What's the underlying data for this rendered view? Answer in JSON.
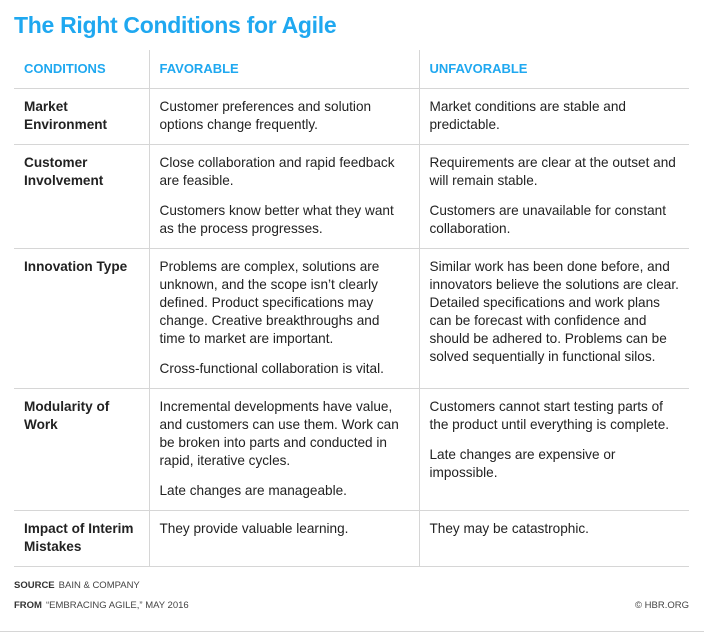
{
  "title": "The Right Conditions for Agile",
  "table": {
    "headers": [
      "CONDITIONS",
      "FAVORABLE",
      "UNFAVORABLE"
    ],
    "rows": [
      {
        "condition": "Market Environment",
        "favorable": [
          "Customer preferences and solution options change frequently."
        ],
        "unfavorable": [
          "Market conditions are stable and predictable."
        ]
      },
      {
        "condition": "Customer Involvement",
        "favorable": [
          "Close collaboration and rapid feedback are feasible.",
          "Customers know better what they want as the process progresses."
        ],
        "unfavorable": [
          "Requirements are clear at the outset and will remain stable.",
          "Customers are unavailable for constant collaboration."
        ]
      },
      {
        "condition": "Innovation Type",
        "favorable": [
          "Problems are complex, solutions are unknown, and the scope isn’t clearly defined. Product specifications may change. Creative breakthroughs and time to market are important.",
          "Cross-functional collaboration is vital."
        ],
        "unfavorable": [
          "Similar work has been done before, and innovators believe the solutions are clear. Detailed specifications and work plans can be forecast with confidence and should be adhered to. Problems can be solved sequentially in functional silos."
        ]
      },
      {
        "condition": "Modularity of Work",
        "favorable": [
          "Incremental developments have value, and customers can use them. Work can be broken into parts and conducted in rapid, iterative cycles.",
          "Late changes are manageable."
        ],
        "unfavorable": [
          "Customers cannot start testing parts of the product until everything is complete.",
          "Late changes are expensive or impossible."
        ]
      },
      {
        "condition": "Impact of Interim Mistakes",
        "favorable": [
          "They provide valuable learning."
        ],
        "unfavorable": [
          "They may be catastrophic."
        ]
      }
    ]
  },
  "footer": {
    "source_label": "SOURCE",
    "source": "BAIN & COMPANY",
    "from_label": "FROM",
    "from": "“EMBRACING AGILE,” MAY 2016",
    "copyright": "© HBR.ORG"
  },
  "colors": {
    "accent": "#1fa8f0",
    "rule": "#d6d6d6"
  }
}
